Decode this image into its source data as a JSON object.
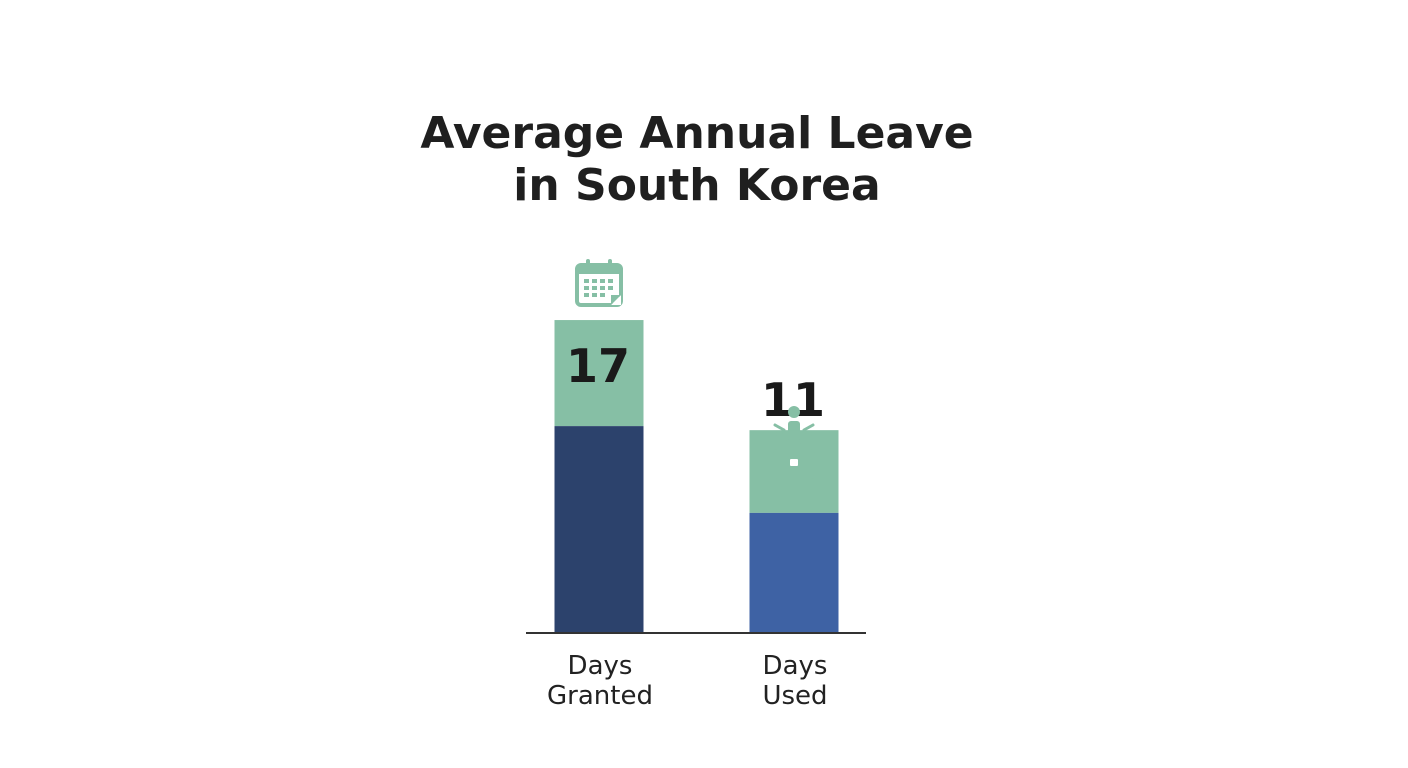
{
  "chart_data": {
    "type": "bar",
    "title": [
      "Average Annual Leave",
      "in South Korea"
    ],
    "categories": [
      [
        "Days",
        "Granted"
      ],
      [
        "Days",
        "Used"
      ]
    ],
    "values": [
      17,
      11
    ],
    "data_labels": [
      "17",
      "11"
    ],
    "icons": [
      "calendar-icon",
      "vacation-briefcase-icon"
    ],
    "grid": false,
    "legend": "none",
    "xlabel": "",
    "ylabel": "",
    "ylim": [
      0,
      17
    ]
  },
  "colors": {
    "bar_top": "#86bfa5",
    "bar_granted_bottom": "#2c426c",
    "bar_used_bottom": "#3e62a4",
    "icon": "#86bfa5",
    "axis": "#333333"
  }
}
